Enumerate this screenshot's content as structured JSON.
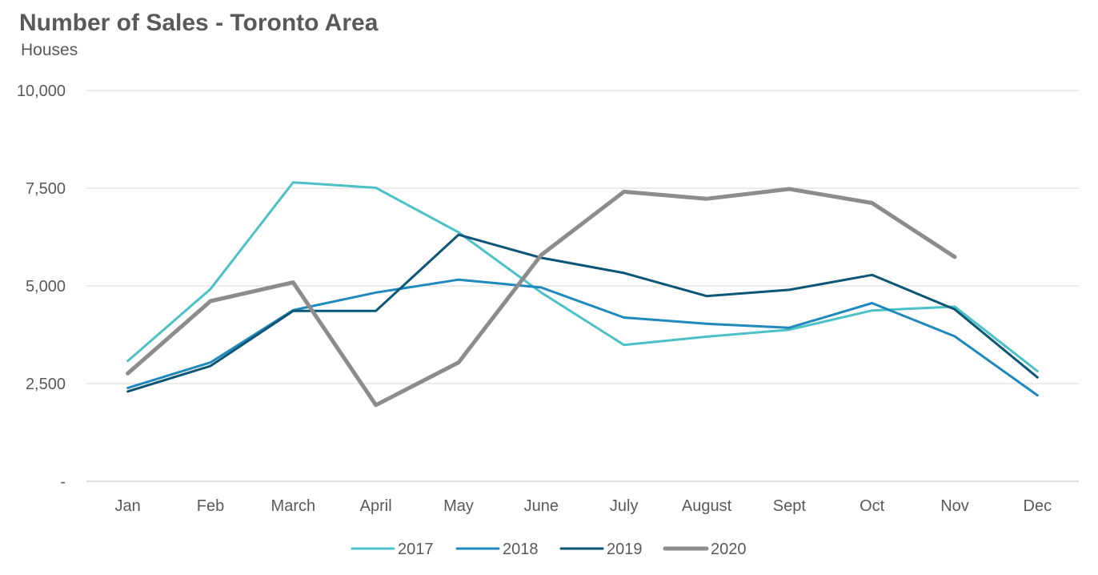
{
  "chart_data": {
    "type": "line",
    "title": "Number of Sales - Toronto Area",
    "subtitle": "Houses",
    "xlabel": "",
    "ylabel": "",
    "categories": [
      "Jan",
      "Feb",
      "March",
      "April",
      "May",
      "June",
      "July",
      "August",
      "Sept",
      "Oct",
      "Nov",
      "Dec"
    ],
    "ylim": [
      0,
      10000
    ],
    "yticks": [
      0,
      2500,
      5000,
      7500,
      10000
    ],
    "ytick_labels": [
      "-",
      "2,500",
      "5,000",
      "7,500",
      "10,000"
    ],
    "grid": true,
    "legend_position": "bottom",
    "series": [
      {
        "name": "2017",
        "color": "#4cc1c6",
        "values": [
          3080,
          4920,
          7650,
          7510,
          6370,
          4830,
          3490,
          3700,
          3880,
          4370,
          4470,
          2820
        ]
      },
      {
        "name": "2018",
        "color": "#1f88bd",
        "values": [
          2390,
          3040,
          4380,
          4830,
          5160,
          4960,
          4190,
          4030,
          3930,
          4560,
          3710,
          2200
        ]
      },
      {
        "name": "2019",
        "color": "#0b5675",
        "values": [
          2300,
          2950,
          4360,
          4360,
          6310,
          5720,
          5330,
          4740,
          4900,
          5280,
          4400,
          2660
        ]
      },
      {
        "name": "2020",
        "color": "#8c8c8c",
        "values": [
          2760,
          4610,
          5090,
          1950,
          3040,
          5790,
          7410,
          7230,
          7480,
          7120,
          5740,
          null
        ]
      }
    ]
  }
}
